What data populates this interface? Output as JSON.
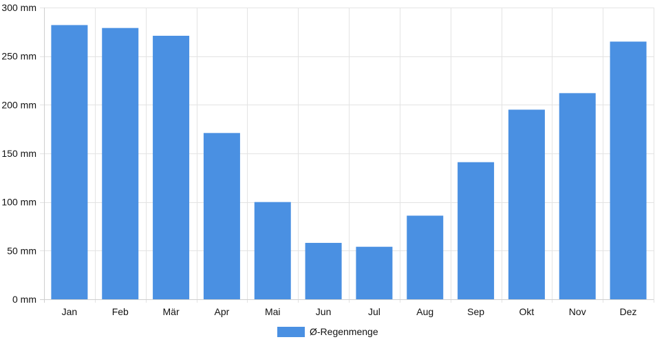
{
  "chart_data": {
    "type": "bar",
    "categories": [
      "Jan",
      "Feb",
      "Mär",
      "Apr",
      "Mai",
      "Jun",
      "Jul",
      "Aug",
      "Sep",
      "Okt",
      "Nov",
      "Dez"
    ],
    "series": [
      {
        "name": "Ø-Regenmenge",
        "values": [
          282,
          279,
          271,
          171,
          100,
          58,
          54,
          86,
          141,
          195,
          212,
          265
        ],
        "color": "#4a90e2"
      }
    ],
    "title": "",
    "xlabel": "",
    "ylabel": "",
    "ylim": [
      0,
      300
    ],
    "yticks": [
      0,
      50,
      100,
      150,
      200,
      250,
      300
    ],
    "ytick_labels": [
      "0 mm",
      "50 mm",
      "100 mm",
      "150 mm",
      "200 mm",
      "250 mm",
      "300 mm"
    ],
    "grid": true,
    "legend_position": "bottom-center"
  }
}
